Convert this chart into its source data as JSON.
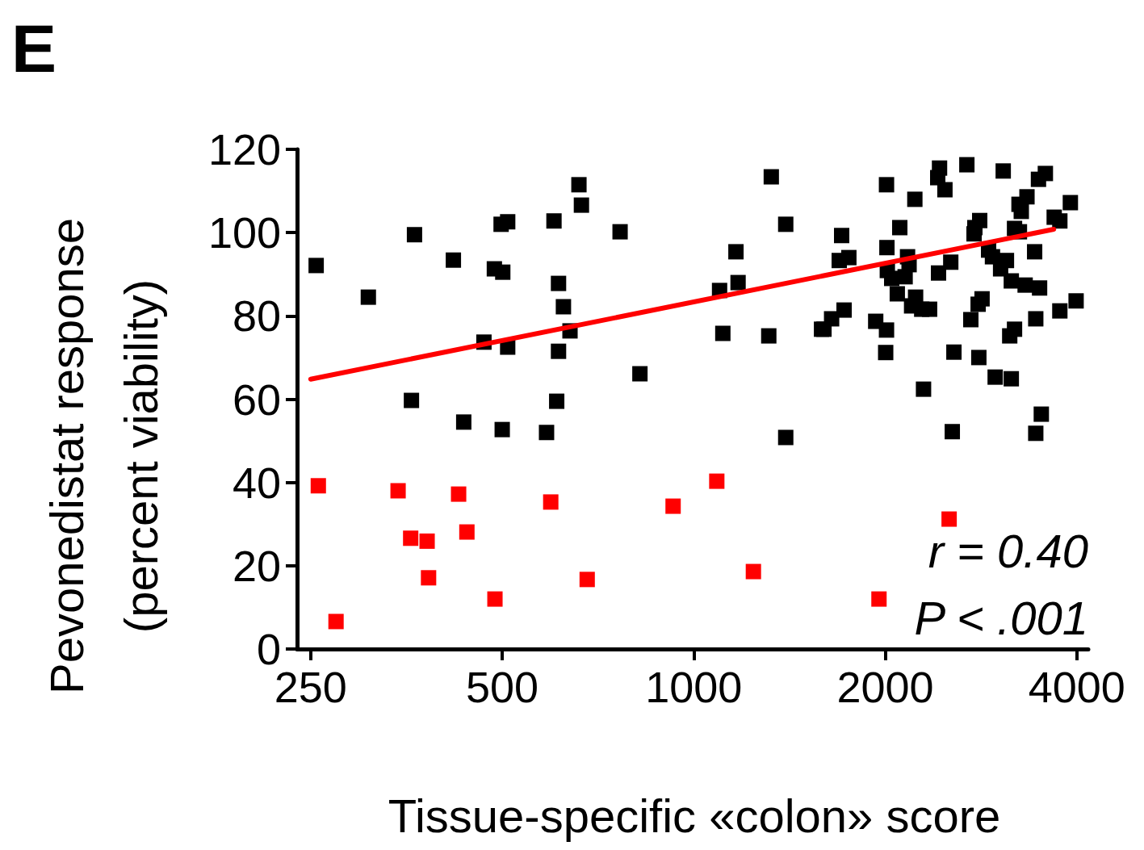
{
  "chart_data": {
    "type": "scatter",
    "title": "E",
    "xlabel": "Tissue-specific «colon» score",
    "ylabel": "Pevonedistat response\n(percent viability)",
    "log": "x",
    "xlim": [
      238,
      4170
    ],
    "xticks": [
      250,
      500,
      1000,
      2000,
      4000
    ],
    "ylim": [
      0,
      120
    ],
    "yticks": [
      0,
      20,
      40,
      60,
      80,
      100,
      120
    ],
    "grid": false,
    "marker": "square",
    "annotations": [
      "r = 0.40",
      "P < .001"
    ],
    "series": [
      {
        "type": "scatter",
        "color": "#000000",
        "x": [
          255,
          308,
          364,
          360,
          419,
          435,
          468,
          486,
          501,
          498,
          510,
          510,
          500,
          587,
          603,
          609,
          613,
          613,
          624,
          639,
          660,
          666,
          766,
          823,
          1098,
          1111,
          1165,
          1174,
          1312,
          1324,
          1395,
          1395,
          1588,
          1602,
          1647,
          1723,
          1708,
          1693,
          1753,
          1932,
          2009,
          2003,
          2009,
          2012,
          2015,
          2047,
          2089,
          2108,
          2149,
          2168,
          2180,
          2200,
          2226,
          2232,
          2282,
          2297,
          2348,
          2418,
          2434,
          2482,
          2425,
          2535,
          2564,
          2549,
          2687,
          2726,
          2758,
          2766,
          2799,
          2815,
          2839,
          2806,
          2907,
          2948,
          2977,
          3036,
          3065,
          3101,
          3138,
          3156,
          3156,
          3193,
          3193,
          3245,
          3250,
          3272,
          3318,
          3340,
          3434,
          3448,
          3448,
          3482,
          3496,
          3518,
          3570,
          3686,
          3762,
          3762,
          3908,
          3990
        ],
        "values": [
          92.1,
          84.5,
          99.5,
          59.7,
          93.4,
          54.5,
          73.7,
          91.3,
          90.5,
          102,
          102.6,
          72.5,
          52.7,
          52,
          102.8,
          59.5,
          87.8,
          71.5,
          82.2,
          76.4,
          111.5,
          106.6,
          100.2,
          66.1,
          86.1,
          75.8,
          95.4,
          88,
          75.2,
          113.4,
          102,
          50.8,
          76.8,
          76.8,
          79.3,
          81.4,
          99.3,
          93.3,
          94,
          78.7,
          76.6,
          71.2,
          111.5,
          96.4,
          90.9,
          89,
          85.3,
          101.2,
          89.4,
          94.2,
          92.3,
          82.4,
          108,
          84.5,
          81.6,
          62.4,
          81.6,
          113.2,
          115.5,
          110.3,
          90.3,
          92.9,
          71.3,
          52.2,
          116.3,
          79.1,
          99.7,
          101.2,
          82.8,
          102.9,
          84.1,
          70,
          95.8,
          94.2,
          65.3,
          91.3,
          114.8,
          93.3,
          75.2,
          88.4,
          64.9,
          76.8,
          101,
          106.8,
          100.2,
          105.1,
          87.4,
          108.6,
          95.4,
          79.3,
          51.8,
          112.8,
          86.7,
          56.4,
          114.2,
          103.7,
          102.8,
          81.2,
          107.2,
          83.6
        ]
      },
      {
        "type": "scatter",
        "color": "#ff0000",
        "x": [
          257,
          274,
          343,
          359,
          381,
          383,
          427,
          440,
          487,
          596,
          680,
          928,
          1087,
          1241,
          1955,
          2520
        ],
        "values": [
          39.2,
          6.6,
          38,
          26.6,
          25.9,
          17.1,
          37.2,
          28.1,
          12,
          35.3,
          16.7,
          34.3,
          40.3,
          18.6,
          12,
          31.2
        ]
      },
      {
        "type": "line",
        "color": "#ff0000",
        "marker": "none",
        "x": [
          250,
          3680
        ],
        "values": [
          64.8,
          100.8
        ]
      }
    ]
  }
}
